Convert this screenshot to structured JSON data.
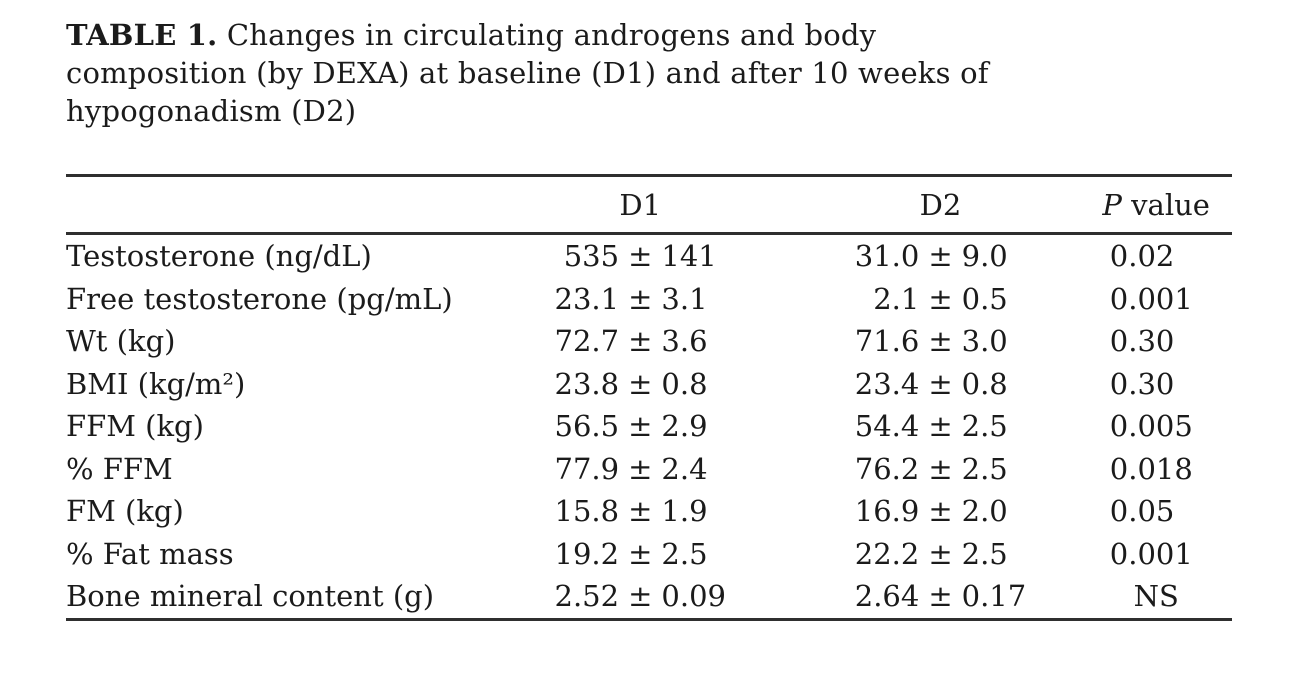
{
  "page": {
    "background": "#ffffff",
    "text_color": "#1b1b1b",
    "rule_color": "#2f2f2f"
  },
  "title": {
    "label": "TABLE 1.",
    "line1": "Changes in circulating androgens and body",
    "line2": "composition (by DEXA) at baseline (D1) and after 10 weeks of",
    "line3": "hypogonadism (D2)"
  },
  "table": {
    "columns": {
      "row_label": "",
      "d1": "D1",
      "d2": "D2",
      "p_italic": "P",
      "p_rest": "value"
    },
    "rows": [
      {
        "label": "Testosterone (ng/dL)",
        "d1": "535 ± 141",
        "d2": "31.0 ± 9.0",
        "p": "0.02"
      },
      {
        "label": "Free testosterone (pg/mL)",
        "d1": "23.1 ± 3.1",
        "d2": "2.1 ± 0.5",
        "p": "0.001"
      },
      {
        "label": "Wt (kg)",
        "d1": "72.7 ± 3.6",
        "d2": "71.6 ± 3.0",
        "p": "0.30"
      },
      {
        "label": "BMI (kg/m²)",
        "d1": "23.8 ± 0.8",
        "d2": "23.4 ± 0.8",
        "p": "0.30"
      },
      {
        "label": "FFM (kg)",
        "d1": "56.5 ± 2.9",
        "d2": "54.4 ± 2.5",
        "p": "0.005"
      },
      {
        "label": "% FFM",
        "d1": "77.9 ± 2.4",
        "d2": "76.2 ± 2.5",
        "p": "0.018"
      },
      {
        "label": "FM (kg)",
        "d1": "15.8 ± 1.9",
        "d2": "16.9 ± 2.0",
        "p": "0.05"
      },
      {
        "label": "% Fat mass",
        "d1": "19.2 ± 2.5",
        "d2": "22.2 ± 2.5",
        "p": "0.001"
      },
      {
        "label": "Bone mineral content (g)",
        "d1": "2.52 ± 0.09",
        "d2": "2.64 ± 0.17",
        "p": "NS"
      }
    ]
  },
  "chart_data": {
    "type": "table",
    "title": "TABLE 1. Changes in circulating androgens and body composition (by DEXA) at baseline (D1) and after 10 weeks of hypogonadism (D2)",
    "columns": [
      "",
      "D1",
      "D2",
      "P value"
    ],
    "rows": [
      [
        "Testosterone (ng/dL)",
        "535 ± 141",
        "31.0 ± 9.0",
        "0.02"
      ],
      [
        "Free testosterone (pg/mL)",
        "23.1 ± 3.1",
        "2.1 ± 0.5",
        "0.001"
      ],
      [
        "Wt (kg)",
        "72.7 ± 3.6",
        "71.6 ± 3.0",
        "0.30"
      ],
      [
        "BMI (kg/m²)",
        "23.8 ± 0.8",
        "23.4 ± 0.8",
        "0.30"
      ],
      [
        "FFM (kg)",
        "56.5 ± 2.9",
        "54.4 ± 2.5",
        "0.005"
      ],
      [
        "% FFM",
        "77.9 ± 2.4",
        "76.2 ± 2.5",
        "0.018"
      ],
      [
        "FM (kg)",
        "15.8 ± 1.9",
        "16.9 ± 2.0",
        "0.05"
      ],
      [
        "% Fat mass",
        "19.2 ± 2.5",
        "22.2 ± 2.5",
        "0.001"
      ],
      [
        "Bone mineral content (g)",
        "2.52 ± 0.09",
        "2.64 ± 0.17",
        "NS"
      ]
    ]
  }
}
